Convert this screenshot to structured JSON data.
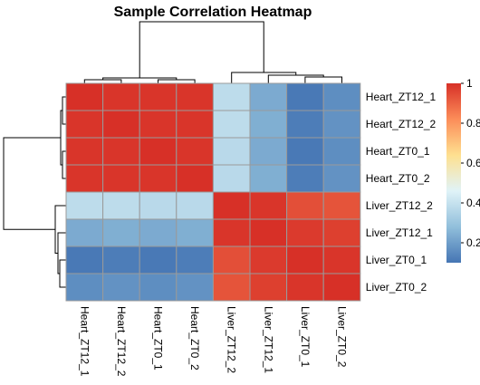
{
  "chart_data": {
    "type": "heatmap",
    "title": "Sample Correlation Heatmap",
    "rows": [
      "Heart_ZT12_1",
      "Heart_ZT12_2",
      "Heart_ZT0_1",
      "Heart_ZT0_2",
      "Liver_ZT12_2",
      "Liver_ZT12_1",
      "Liver_ZT0_1",
      "Liver_ZT0_2"
    ],
    "columns": [
      "Heart_ZT12_1",
      "Heart_ZT12_2",
      "Heart_ZT0_1",
      "Heart_ZT0_2",
      "Liver_ZT12_2",
      "Liver_ZT12_1",
      "Liver_ZT0_1",
      "Liver_ZT0_2"
    ],
    "values": [
      [
        1.0,
        0.99,
        0.99,
        0.99,
        0.38,
        0.23,
        0.11,
        0.16
      ],
      [
        0.99,
        1.0,
        0.99,
        0.99,
        0.38,
        0.24,
        0.12,
        0.17
      ],
      [
        0.99,
        0.99,
        1.0,
        0.99,
        0.37,
        0.23,
        0.11,
        0.16
      ],
      [
        0.99,
        0.99,
        0.99,
        1.0,
        0.37,
        0.24,
        0.12,
        0.17
      ],
      [
        0.38,
        0.38,
        0.37,
        0.37,
        1.0,
        0.99,
        0.94,
        0.93
      ],
      [
        0.23,
        0.24,
        0.23,
        0.24,
        0.99,
        1.0,
        0.98,
        0.97
      ],
      [
        0.11,
        0.12,
        0.11,
        0.12,
        0.94,
        0.98,
        1.0,
        0.99
      ],
      [
        0.16,
        0.17,
        0.16,
        0.17,
        0.93,
        0.97,
        0.99,
        1.0
      ]
    ],
    "colorbar": {
      "ticks": [
        0.2,
        0.4,
        0.6,
        0.8,
        1
      ],
      "range": [
        0.1,
        1.0
      ],
      "colors": [
        "#4575b4",
        "#91bfdb",
        "#e0f3f8",
        "#fee090",
        "#fc8d59",
        "#d73027"
      ]
    }
  }
}
